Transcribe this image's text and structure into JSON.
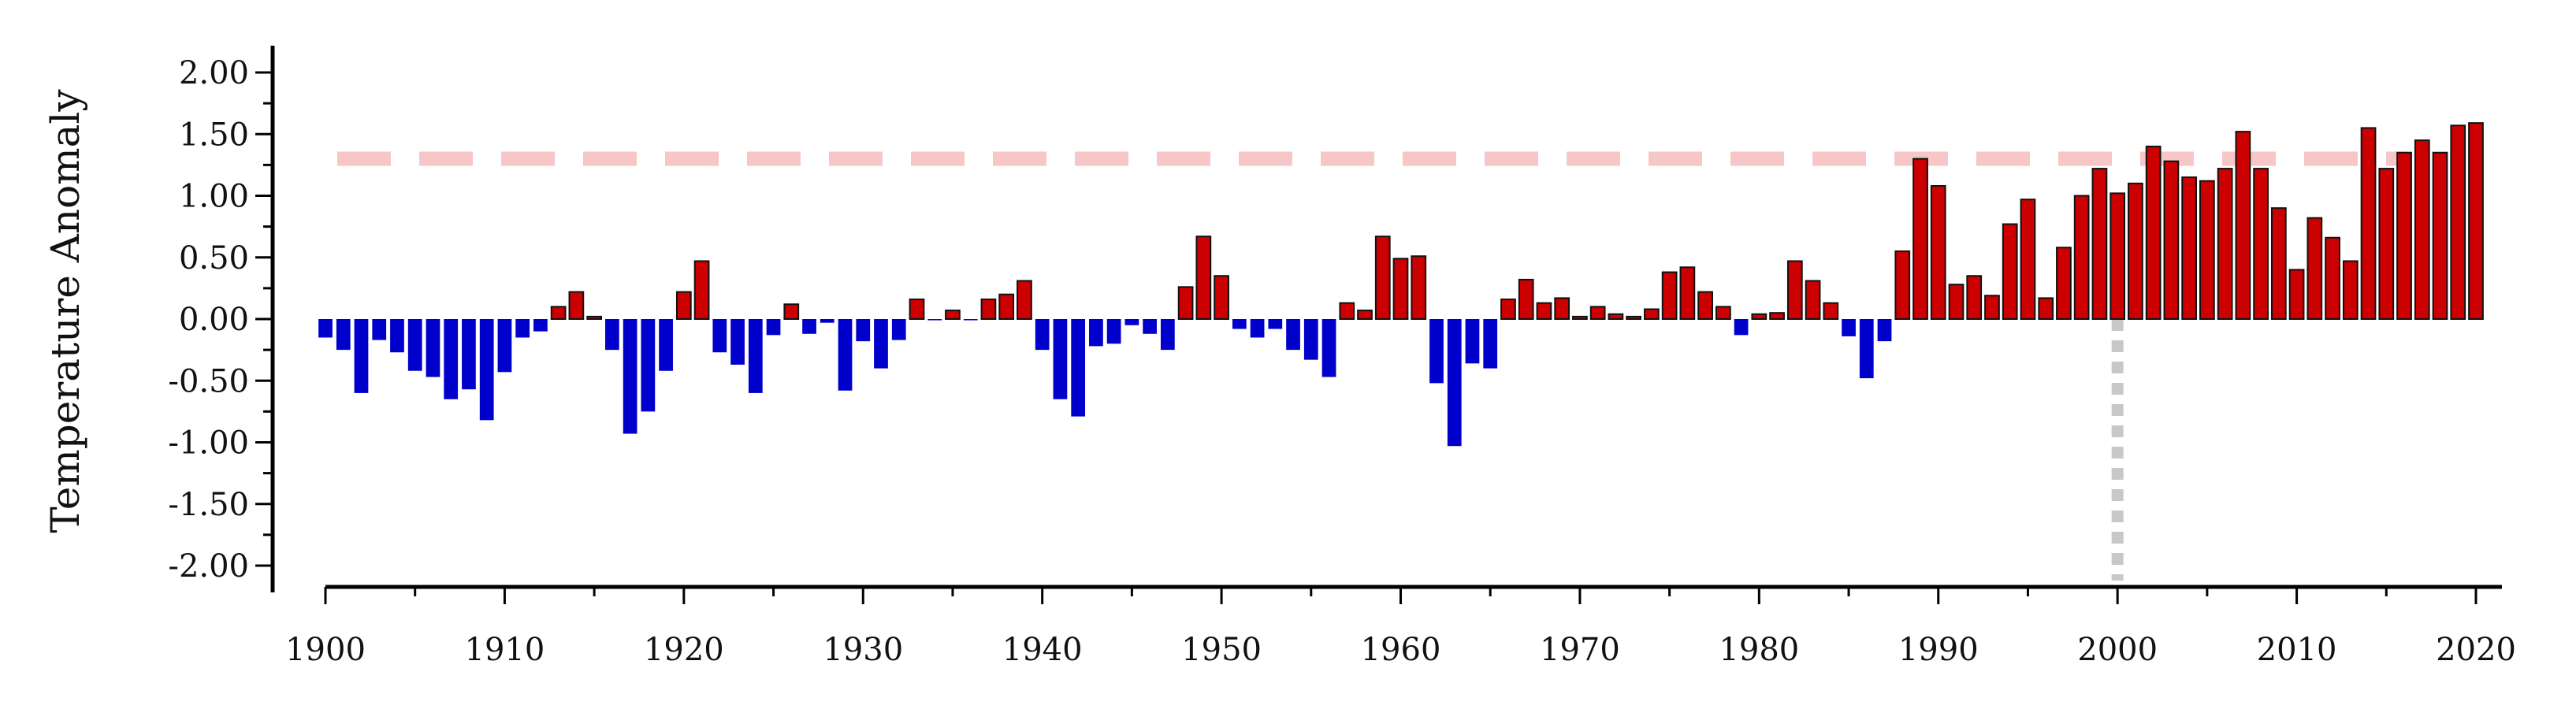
{
  "chart_data": {
    "type": "bar",
    "title": "",
    "xlabel": "",
    "ylabel": "Temperature Anomaly",
    "ylim": [
      -2.2,
      2.2
    ],
    "xlim": [
      1899.5,
      2020.5
    ],
    "y_ticks": [
      "2.00",
      "1.50",
      "1.00",
      "0.50",
      "0.00",
      "-0.50",
      "-1.00",
      "-1.50",
      "-2.00"
    ],
    "x_ticks": [
      "1900",
      "1910",
      "1920",
      "1930",
      "1940",
      "1950",
      "1960",
      "1970",
      "1980",
      "1990",
      "2000",
      "2010",
      "2020"
    ],
    "grid": false,
    "colors": {
      "positive": "#cc0000",
      "negative": "#0000cc",
      "reference_line": "#f7c6c6",
      "marker_line": "#c8c8c8"
    },
    "reference_line": {
      "y": 1.3
    },
    "vertical_marker": {
      "x": 2000
    },
    "x": [
      1900,
      1901,
      1902,
      1903,
      1904,
      1905,
      1906,
      1907,
      1908,
      1909,
      1910,
      1911,
      1912,
      1913,
      1914,
      1915,
      1916,
      1917,
      1918,
      1919,
      1920,
      1921,
      1922,
      1923,
      1924,
      1925,
      1926,
      1927,
      1928,
      1929,
      1930,
      1931,
      1932,
      1933,
      1934,
      1935,
      1936,
      1937,
      1938,
      1939,
      1940,
      1941,
      1942,
      1943,
      1944,
      1945,
      1946,
      1947,
      1948,
      1949,
      1950,
      1951,
      1952,
      1953,
      1954,
      1955,
      1956,
      1957,
      1958,
      1959,
      1960,
      1961,
      1962,
      1963,
      1964,
      1965,
      1966,
      1967,
      1968,
      1969,
      1970,
      1971,
      1972,
      1973,
      1974,
      1975,
      1976,
      1977,
      1978,
      1979,
      1980,
      1981,
      1982,
      1983,
      1984,
      1985,
      1986,
      1987,
      1988,
      1989,
      1990,
      1991,
      1992,
      1993,
      1994,
      1995,
      1996,
      1997,
      1998,
      1999,
      2000,
      2001,
      2002,
      2003,
      2004,
      2005,
      2006,
      2007,
      2008,
      2009,
      2010,
      2011,
      2012,
      2013,
      2014,
      2015,
      2016,
      2017,
      2018,
      2019,
      2020
    ],
    "values": [
      -0.15,
      -0.25,
      -0.6,
      -0.17,
      -0.27,
      -0.42,
      -0.47,
      -0.65,
      -0.57,
      -0.82,
      -0.43,
      -0.15,
      -0.1,
      0.1,
      0.22,
      0.02,
      -0.25,
      -0.93,
      -0.75,
      -0.42,
      0.22,
      0.47,
      -0.27,
      -0.37,
      -0.6,
      -0.13,
      0.12,
      -0.12,
      -0.03,
      -0.58,
      -0.18,
      -0.4,
      -0.17,
      0.16,
      -0.01,
      0.07,
      -0.01,
      0.16,
      0.2,
      0.31,
      -0.25,
      -0.65,
      -0.79,
      -0.22,
      -0.2,
      -0.05,
      -0.12,
      -0.25,
      0.26,
      0.67,
      0.35,
      -0.08,
      -0.15,
      -0.08,
      -0.25,
      -0.33,
      -0.47,
      0.13,
      0.07,
      0.67,
      0.49,
      0.51,
      -0.52,
      -1.03,
      -0.36,
      -0.4,
      0.16,
      0.32,
      0.13,
      0.17,
      0.02,
      0.1,
      0.04,
      0.02,
      0.08,
      0.38,
      0.42,
      0.22,
      0.1,
      -0.13,
      0.04,
      0.05,
      0.47,
      0.31,
      0.13,
      -0.14,
      -0.48,
      -0.18,
      0.55,
      1.3,
      1.08,
      0.28,
      0.35,
      0.19,
      0.77,
      0.97,
      0.17,
      0.58,
      1.0,
      1.22,
      1.02,
      1.1,
      1.4,
      1.28,
      1.15,
      1.12,
      1.22,
      1.52,
      1.22,
      0.9,
      0.4,
      0.82,
      0.66,
      0.47,
      1.55,
      1.22,
      1.35,
      1.45,
      1.35,
      1.57,
      1.59
    ]
  }
}
